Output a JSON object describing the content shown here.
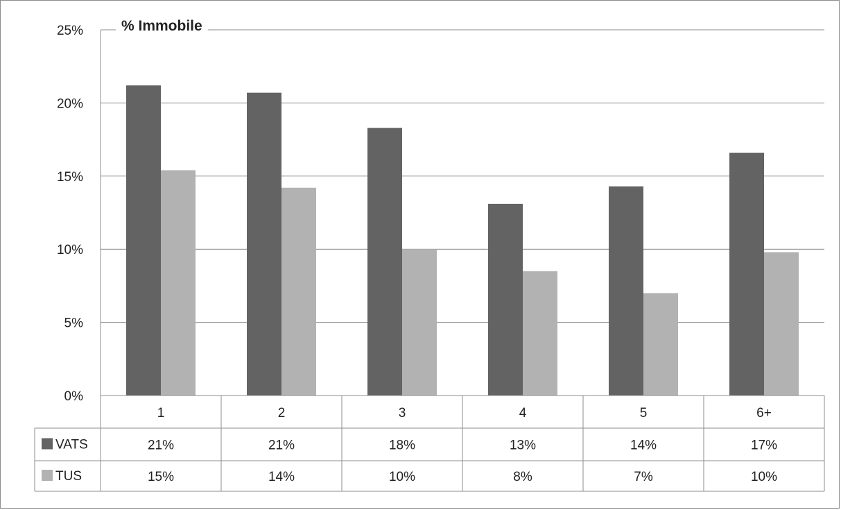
{
  "chart_data": {
    "type": "bar",
    "title": "% Immobile",
    "categories": [
      "1",
      "2",
      "3",
      "4",
      "5",
      "6+"
    ],
    "series": [
      {
        "name": "VATS",
        "color": "#636363",
        "values": [
          21.2,
          20.7,
          18.3,
          13.1,
          14.3,
          16.6
        ],
        "labels": [
          "21%",
          "21%",
          "18%",
          "13%",
          "14%",
          "17%"
        ]
      },
      {
        "name": "TUS",
        "color": "#b2b2b2",
        "values": [
          15.4,
          14.2,
          10.0,
          8.5,
          7.0,
          9.8
        ],
        "labels": [
          "15%",
          "14%",
          "10%",
          "8%",
          "7%",
          "10%"
        ]
      }
    ],
    "ylim": [
      0,
      25
    ],
    "yticks": [
      0,
      5,
      10,
      15,
      20,
      25
    ],
    "ytick_labels": [
      "0%",
      "5%",
      "10%",
      "15%",
      "20%",
      "25%"
    ],
    "grid": true,
    "legend": "data-table"
  }
}
